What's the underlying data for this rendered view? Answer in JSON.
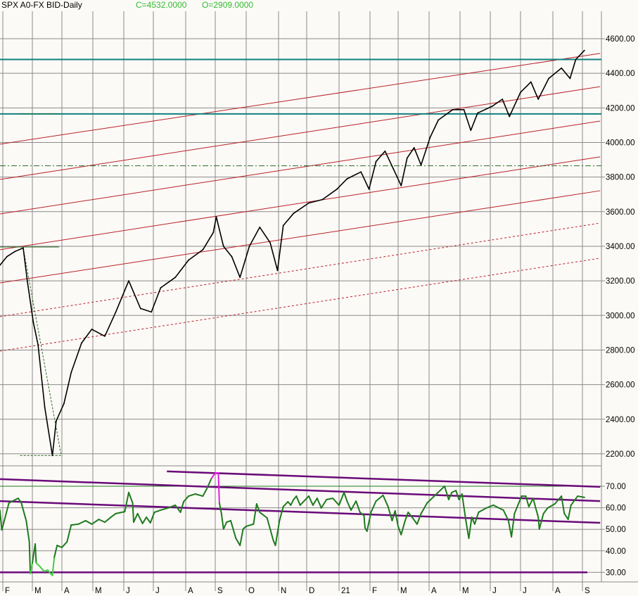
{
  "header": {
    "title": "SPX A0-FX BID-Daily",
    "close_label": "C=4532.0000",
    "open_label": "O=2909.0000"
  },
  "colors": {
    "background": "#fcfaf6",
    "grid": "#8a8a8a",
    "price": "#000000",
    "channel": "#b8202a",
    "support": "#0e8080",
    "dashdot": "#2a6a2a",
    "rsi": "#1f7a1f",
    "rsi_overbought": "#e020e0",
    "rsi_oversold": "#44cc44",
    "rsi_lines": "#6a0a7a"
  },
  "chart_data": [
    {
      "type": "line",
      "panel": "price",
      "title": "SPX A0-FX BID-Daily",
      "x_tick_labels": [
        "F",
        "M",
        "A",
        "M",
        "J",
        "J",
        "A",
        "S",
        "O",
        "N",
        "D",
        "21",
        "F",
        "M",
        "A",
        "M",
        "J",
        "J",
        "A",
        "S"
      ],
      "y_ticks": [
        "2200.00",
        "2400.00",
        "2600.00",
        "2800.00",
        "3000.00",
        "3200.00",
        "3400.00",
        "3600.00",
        "3800.00",
        "4000.00",
        "4200.00",
        "4400.00",
        "4600.00"
      ],
      "ylim": [
        2200,
        4600
      ],
      "grid": true,
      "series": [
        {
          "points": [
            [
              "2020-01-29",
              3290
            ],
            [
              "2020-02-05",
              3340
            ],
            [
              "2020-02-13",
              3370
            ],
            [
              "2020-02-21",
              3390
            ],
            [
              "2020-02-25",
              3200
            ],
            [
              "2020-03-02",
              2960
            ],
            [
              "2020-03-07",
              2830
            ],
            [
              "2020-03-14",
              2470
            ],
            [
              "2020-03-22",
              2190
            ],
            [
              "2020-03-26",
              2390
            ],
            [
              "2020-04-03",
              2490
            ],
            [
              "2020-04-10",
              2670
            ],
            [
              "2020-04-20",
              2840
            ],
            [
              "2020-04-30",
              2920
            ],
            [
              "2020-05-13",
              2880
            ],
            [
              "2020-05-24",
              3020
            ],
            [
              "2020-06-06",
              3200
            ],
            [
              "2020-06-18",
              3040
            ],
            [
              "2020-06-29",
              3020
            ],
            [
              "2020-07-08",
              3160
            ],
            [
              "2020-07-22",
              3220
            ],
            [
              "2020-08-04",
              3320
            ],
            [
              "2020-08-19",
              3380
            ],
            [
              "2020-08-30",
              3480
            ],
            [
              "2020-09-02",
              3570
            ],
            [
              "2020-09-09",
              3400
            ],
            [
              "2020-09-17",
              3340
            ],
            [
              "2020-09-25",
              3220
            ],
            [
              "2020-10-04",
              3400
            ],
            [
              "2020-10-14",
              3510
            ],
            [
              "2020-10-24",
              3420
            ],
            [
              "2020-10-31",
              3260
            ],
            [
              "2020-11-06",
              3520
            ],
            [
              "2020-11-17",
              3590
            ],
            [
              "2020-12-03",
              3650
            ],
            [
              "2020-12-16",
              3670
            ],
            [
              "2020-12-30",
              3730
            ],
            [
              "2021-01-09",
              3790
            ],
            [
              "2021-01-23",
              3830
            ],
            [
              "2021-01-31",
              3730
            ],
            [
              "2021-02-07",
              3890
            ],
            [
              "2021-02-16",
              3950
            ],
            [
              "2021-02-24",
              3850
            ],
            [
              "2021-03-04",
              3750
            ],
            [
              "2021-03-10",
              3910
            ],
            [
              "2021-03-17",
              3970
            ],
            [
              "2021-03-24",
              3870
            ],
            [
              "2021-04-02",
              4030
            ],
            [
              "2021-04-10",
              4130
            ],
            [
              "2021-04-24",
              4190
            ],
            [
              "2021-05-05",
              4190
            ],
            [
              "2021-05-12",
              4070
            ],
            [
              "2021-05-19",
              4170
            ],
            [
              "2021-06-03",
              4210
            ],
            [
              "2021-06-13",
              4250
            ],
            [
              "2021-06-20",
              4150
            ],
            [
              "2021-07-01",
              4290
            ],
            [
              "2021-07-11",
              4350
            ],
            [
              "2021-07-18",
              4250
            ],
            [
              "2021-07-28",
              4370
            ],
            [
              "2021-08-10",
              4430
            ],
            [
              "2021-08-19",
              4370
            ],
            [
              "2021-08-25",
              4480
            ],
            [
              "2021-09-03",
              4532
            ]
          ]
        }
      ],
      "horizontal_levels": [
        {
          "value": 4480,
          "style": "solid",
          "color": "support"
        },
        {
          "value": 4165,
          "style": "solid",
          "color": "support"
        },
        {
          "value": 3865,
          "style": "dashdot",
          "color": "dashdot"
        }
      ],
      "channel_lines": [
        {
          "from": [
            "2020-01-29",
            3990
          ],
          "to": [
            "2021-09-19",
            4515
          ],
          "style": "solid"
        },
        {
          "from": [
            "2020-01-29",
            3786
          ],
          "to": [
            "2021-09-19",
            4323
          ],
          "style": "solid"
        },
        {
          "from": [
            "2020-01-29",
            3587
          ],
          "to": [
            "2021-09-19",
            4124
          ],
          "style": "solid"
        },
        {
          "from": [
            "2020-01-29",
            3380
          ],
          "to": [
            "2021-09-19",
            3917
          ],
          "style": "solid"
        },
        {
          "from": [
            "2020-01-29",
            3188
          ],
          "to": [
            "2021-09-19",
            3721
          ],
          "style": "solid"
        },
        {
          "from": [
            "2020-01-29",
            2993
          ],
          "to": [
            "2021-09-19",
            3534
          ],
          "style": "dashed"
        },
        {
          "from": [
            "2020-01-29",
            2794
          ],
          "to": [
            "2021-09-19",
            3331
          ],
          "style": "dashed"
        }
      ],
      "annotation_lines": [
        {
          "from": [
            "2020-01-29",
            3396
          ],
          "to": [
            "2020-03-29",
            3396
          ],
          "style": "solid"
        },
        {
          "from": [
            "2020-02-18",
            4165
          ],
          "to": [
            "2020-03-29",
            4165
          ],
          "style": "dashed"
        },
        {
          "from": [
            "2020-02-18",
            2190
          ],
          "to": [
            "2020-03-31",
            2190
          ],
          "style": "dashed"
        },
        {
          "from": [
            "2020-02-21",
            3390
          ],
          "to": [
            "2020-03-31",
            2200
          ],
          "style": "dashed"
        }
      ]
    },
    {
      "type": "line",
      "panel": "oscillator",
      "y_ticks": [
        "30.00",
        "40.00",
        "50.00",
        "60.00",
        "70.00"
      ],
      "ylim": [
        27,
        80
      ],
      "grid": true,
      "series": [
        {
          "points": [
            [
              "2020-01-29",
              58.9
            ],
            [
              "2020-01-31",
              49.7
            ],
            [
              "2020-02-07",
              62.2
            ],
            [
              "2020-02-16",
              64.4
            ],
            [
              "2020-02-19",
              62.5
            ],
            [
              "2020-02-24",
              54
            ],
            [
              "2020-02-27",
              44.2
            ],
            [
              "2020-02-28",
              29.5
            ],
            [
              "2020-03-01",
              34.4
            ],
            [
              "2020-03-04",
              43.2
            ],
            [
              "2020-03-05",
              34.4
            ],
            [
              "2020-03-09",
              32.7
            ],
            [
              "2020-03-12",
              31.1
            ],
            [
              "2020-03-14",
              30.5
            ],
            [
              "2020-03-17",
              31.1
            ],
            [
              "2020-03-22",
              28.5
            ],
            [
              "2020-03-24",
              37
            ],
            [
              "2020-03-27",
              42.5
            ],
            [
              "2020-04-01",
              41.6
            ],
            [
              "2020-04-06",
              44.2
            ],
            [
              "2020-04-10",
              52
            ],
            [
              "2020-04-17",
              52.4
            ],
            [
              "2020-04-24",
              54
            ],
            [
              "2020-04-30",
              52.4
            ],
            [
              "2020-05-07",
              54.6
            ],
            [
              "2020-05-13",
              53.3
            ],
            [
              "2020-05-19",
              55.6
            ],
            [
              "2020-05-24",
              57.3
            ],
            [
              "2020-06-02",
              58.2
            ],
            [
              "2020-06-06",
              67.1
            ],
            [
              "2020-06-10",
              62.2
            ],
            [
              "2020-06-11",
              53.3
            ],
            [
              "2020-06-15",
              57.3
            ],
            [
              "2020-06-20",
              52.7
            ],
            [
              "2020-06-24",
              55.6
            ],
            [
              "2020-06-28",
              53
            ],
            [
              "2020-07-02",
              57.9
            ],
            [
              "2020-07-08",
              58.9
            ],
            [
              "2020-07-15",
              59.9
            ],
            [
              "2020-07-22",
              61.2
            ],
            [
              "2020-07-27",
              57.9
            ],
            [
              "2020-07-30",
              62.8
            ],
            [
              "2020-08-04",
              65.4
            ],
            [
              "2020-08-11",
              66.4
            ],
            [
              "2020-08-19",
              65.4
            ],
            [
              "2020-08-23",
              68.7
            ],
            [
              "2020-08-28",
              73.6
            ],
            [
              "2020-09-01",
              76.2
            ],
            [
              "2020-09-04",
              76.2
            ],
            [
              "2020-09-05",
              62.2
            ],
            [
              "2020-09-07",
              57.3
            ],
            [
              "2020-09-09",
              50.1
            ],
            [
              "2020-09-12",
              53.3
            ],
            [
              "2020-09-16",
              54
            ],
            [
              "2020-09-21",
              45.8
            ],
            [
              "2020-09-25",
              42.5
            ],
            [
              "2020-09-28",
              50.1
            ],
            [
              "2020-10-01",
              51.4
            ],
            [
              "2020-10-08",
              52.4
            ],
            [
              "2020-10-11",
              61.8
            ],
            [
              "2020-10-14",
              57.9
            ],
            [
              "2020-10-21",
              55.3
            ],
            [
              "2020-10-27",
              44.8
            ],
            [
              "2020-10-29",
              42.5
            ],
            [
              "2020-11-02",
              54
            ],
            [
              "2020-11-06",
              60.5
            ],
            [
              "2020-11-11",
              62.8
            ],
            [
              "2020-11-14",
              61.2
            ],
            [
              "2020-11-17",
              63.8
            ],
            [
              "2020-11-20",
              65.4
            ],
            [
              "2020-11-24",
              61.2
            ],
            [
              "2020-12-03",
              65.4
            ],
            [
              "2020-12-07",
              61.2
            ],
            [
              "2020-12-11",
              64.4
            ],
            [
              "2020-12-15",
              59.9
            ],
            [
              "2020-12-20",
              63.8
            ],
            [
              "2020-12-26",
              64.4
            ],
            [
              "2021-01-01",
              61.2
            ],
            [
              "2021-01-06",
              67.1
            ],
            [
              "2021-01-09",
              63.1
            ],
            [
              "2021-01-13",
              58.9
            ],
            [
              "2021-01-18",
              63.1
            ],
            [
              "2021-01-22",
              57.9
            ],
            [
              "2021-01-26",
              56.3
            ],
            [
              "2021-01-27",
              50.7
            ],
            [
              "2021-01-29",
              49.1
            ],
            [
              "2021-02-02",
              57.9
            ],
            [
              "2021-02-07",
              63.1
            ],
            [
              "2021-02-14",
              65.8
            ],
            [
              "2021-02-19",
              60.5
            ],
            [
              "2021-02-23",
              54
            ],
            [
              "2021-02-26",
              58.6
            ],
            [
              "2021-03-01",
              51.4
            ],
            [
              "2021-03-04",
              47.5
            ],
            [
              "2021-03-08",
              54
            ],
            [
              "2021-03-11",
              57.9
            ],
            [
              "2021-03-15",
              55.6
            ],
            [
              "2021-03-20",
              52.4
            ],
            [
              "2021-03-24",
              57.3
            ],
            [
              "2021-03-30",
              62.2
            ],
            [
              "2021-04-06",
              65.4
            ],
            [
              "2021-04-16",
              70
            ],
            [
              "2021-04-20",
              63.8
            ],
            [
              "2021-04-23",
              67.1
            ],
            [
              "2021-04-27",
              68
            ],
            [
              "2021-04-30",
              63.8
            ],
            [
              "2021-05-03",
              66.4
            ],
            [
              "2021-05-07",
              54
            ],
            [
              "2021-05-10",
              45.8
            ],
            [
              "2021-05-13",
              55.6
            ],
            [
              "2021-05-16",
              52.4
            ],
            [
              "2021-05-20",
              57.9
            ],
            [
              "2021-05-28",
              59.9
            ],
            [
              "2021-06-04",
              61.2
            ],
            [
              "2021-06-14",
              58.9
            ],
            [
              "2021-06-19",
              54
            ],
            [
              "2021-06-22",
              46.5
            ],
            [
              "2021-06-25",
              57.3
            ],
            [
              "2021-07-02",
              65.4
            ],
            [
              "2021-07-06",
              65.4
            ],
            [
              "2021-07-09",
              60.5
            ],
            [
              "2021-07-13",
              64.4
            ],
            [
              "2021-07-18",
              55.6
            ],
            [
              "2021-07-19",
              50.1
            ],
            [
              "2021-07-23",
              57.3
            ],
            [
              "2021-07-27",
              59.9
            ],
            [
              "2021-08-03",
              61.8
            ],
            [
              "2021-08-10",
              65.4
            ],
            [
              "2021-08-13",
              57.3
            ],
            [
              "2021-08-17",
              54.6
            ],
            [
              "2021-08-20",
              61.2
            ],
            [
              "2021-08-27",
              65.4
            ],
            [
              "2021-09-03",
              64.8
            ]
          ]
        }
      ],
      "horizontal_levels": [
        {
          "value": 70,
          "style": "thin",
          "color": "rsi"
        }
      ],
      "trend_lines": [
        {
          "from": [
            "2020-07-14",
            76.9
          ],
          "to": [
            "2021-09-19",
            69.7
          ]
        },
        {
          "from": [
            "2020-01-29",
            73.3
          ],
          "to": [
            "2021-09-19",
            63.1
          ]
        },
        {
          "from": [
            "2020-01-29",
            63.1
          ],
          "to": [
            "2021-09-19",
            53.0
          ]
        },
        {
          "from": [
            "2020-01-29",
            30.0
          ],
          "to": [
            "2021-09-06",
            30.0
          ]
        }
      ]
    }
  ]
}
